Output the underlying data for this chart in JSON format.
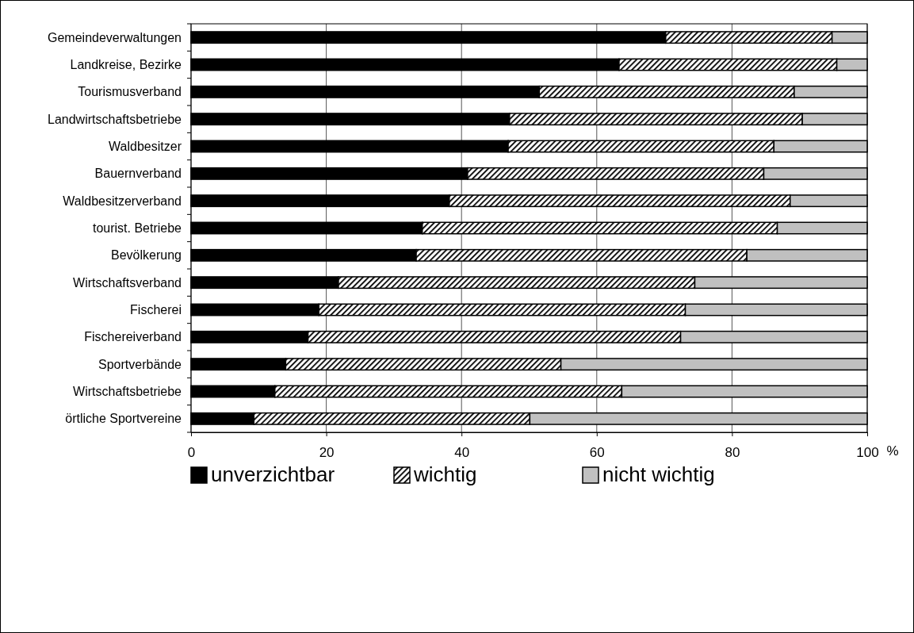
{
  "chart_data": {
    "type": "bar",
    "orientation": "horizontal",
    "stacked": true,
    "categories": [
      "Gemeindeverwaltungen",
      "Landkreise, Bezirke",
      "Tourismusverband",
      "Landwirtschaftsbetriebe",
      "Waldbesitzer",
      "Bauernverband",
      "Waldbesitzerverband",
      "tourist. Betriebe",
      "Bevölkerung",
      "Wirtschaftsverband",
      "Fischerei",
      "Fischereiverband",
      "Sportverbände",
      "Wirtschaftsbetriebe",
      "örtliche Sportvereine"
    ],
    "series": [
      {
        "name": "unverzichtbar",
        "color": "#000000",
        "values": [
          70.2,
          63.3,
          51.5,
          47.1,
          46.9,
          40.9,
          38.2,
          34.2,
          33.3,
          21.8,
          18.9,
          17.3,
          14.0,
          12.4,
          9.3
        ]
      },
      {
        "name": "wichtig",
        "color": "#000000",
        "values": [
          24.6,
          32.2,
          37.7,
          43.3,
          39.3,
          43.8,
          50.4,
          52.5,
          48.9,
          52.7,
          54.2,
          55.1,
          40.7,
          51.3,
          40.8
        ]
      },
      {
        "name": "nicht wichtig",
        "color": "#c0c0c0",
        "values": [
          5.2,
          4.5,
          10.8,
          9.6,
          13.8,
          15.3,
          11.4,
          13.3,
          17.8,
          25.5,
          26.9,
          27.6,
          45.3,
          36.3,
          49.9
        ]
      }
    ],
    "xlabel": "%",
    "xlim": [
      0,
      100
    ],
    "xticks": [
      0,
      20,
      40,
      60,
      80,
      100
    ],
    "grid": "x",
    "legend": "bottom"
  }
}
